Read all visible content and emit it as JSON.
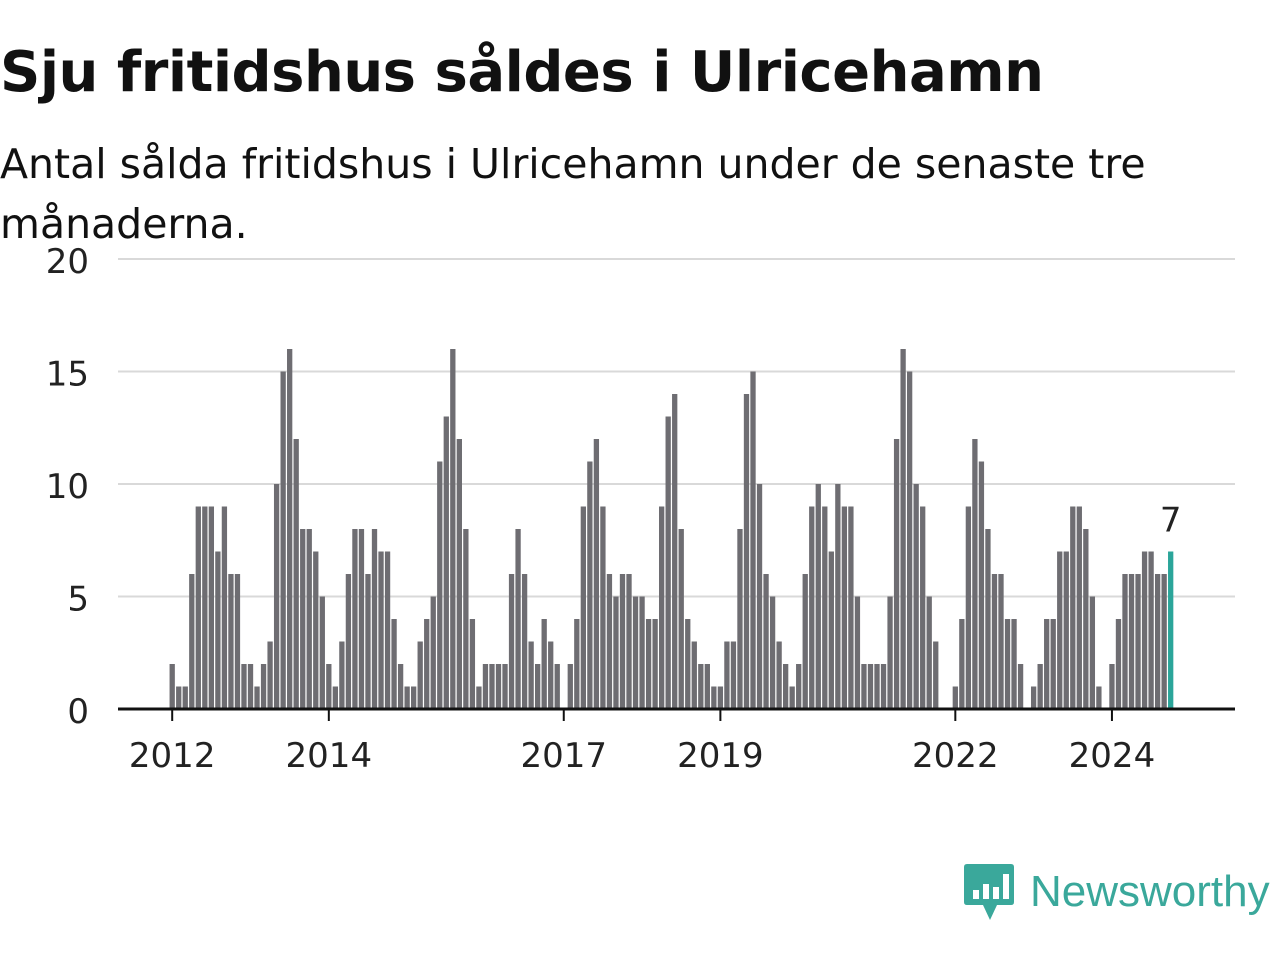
{
  "title": "Sju fritidshus såldes i Ulricehamn",
  "subtitle": "Antal sålda fritidshus i Ulricehamn under de senaste tre månaderna.",
  "brand": {
    "name": "Newsworthy",
    "color": "#3aa89b",
    "icon": "newsworthy-logo-icon"
  },
  "colors": {
    "bar": "#6e6d72",
    "highlight": "#2ba59a",
    "grid": "#d9d9d9",
    "axis": "#111111",
    "text": "#222222"
  },
  "chart_data": {
    "type": "bar",
    "title": "Sju fritidshus såldes i Ulricehamn",
    "xlabel": "",
    "ylabel": "",
    "ylim": [
      0,
      20
    ],
    "yticks": [
      0,
      5,
      10,
      15,
      20
    ],
    "grid": true,
    "start": "2012-01",
    "xtick_labels": [
      {
        "label": "2012",
        "month": "2012-01"
      },
      {
        "label": "2014",
        "month": "2014-01"
      },
      {
        "label": "2017",
        "month": "2017-01"
      },
      {
        "label": "2019",
        "month": "2019-01"
      },
      {
        "label": "2022",
        "month": "2022-01"
      },
      {
        "label": "2024",
        "month": "2024-01"
      }
    ],
    "values": [
      2,
      1,
      1,
      6,
      9,
      9,
      9,
      7,
      9,
      6,
      6,
      2,
      2,
      1,
      2,
      3,
      10,
      15,
      16,
      12,
      8,
      8,
      7,
      5,
      2,
      1,
      3,
      6,
      8,
      8,
      6,
      8,
      7,
      7,
      4,
      2,
      1,
      1,
      3,
      4,
      5,
      11,
      13,
      16,
      12,
      8,
      4,
      1,
      2,
      2,
      2,
      2,
      6,
      8,
      6,
      3,
      2,
      4,
      3,
      2,
      0,
      2,
      4,
      9,
      11,
      12,
      9,
      6,
      5,
      6,
      6,
      5,
      5,
      4,
      4,
      9,
      13,
      14,
      8,
      4,
      3,
      2,
      2,
      1,
      1,
      3,
      3,
      8,
      14,
      15,
      10,
      6,
      5,
      3,
      2,
      1,
      2,
      6,
      9,
      10,
      9,
      7,
      10,
      9,
      9,
      5,
      2,
      2,
      2,
      2,
      5,
      12,
      16,
      15,
      10,
      9,
      5,
      3,
      0,
      0,
      1,
      4,
      9,
      12,
      11,
      8,
      6,
      6,
      4,
      4,
      2,
      0,
      1,
      2,
      4,
      4,
      7,
      7,
      9,
      9,
      8,
      5,
      1,
      0,
      2,
      4,
      6,
      6,
      6,
      7,
      7,
      6,
      6,
      7
    ],
    "highlight_last": true,
    "last_value_label": "7"
  }
}
